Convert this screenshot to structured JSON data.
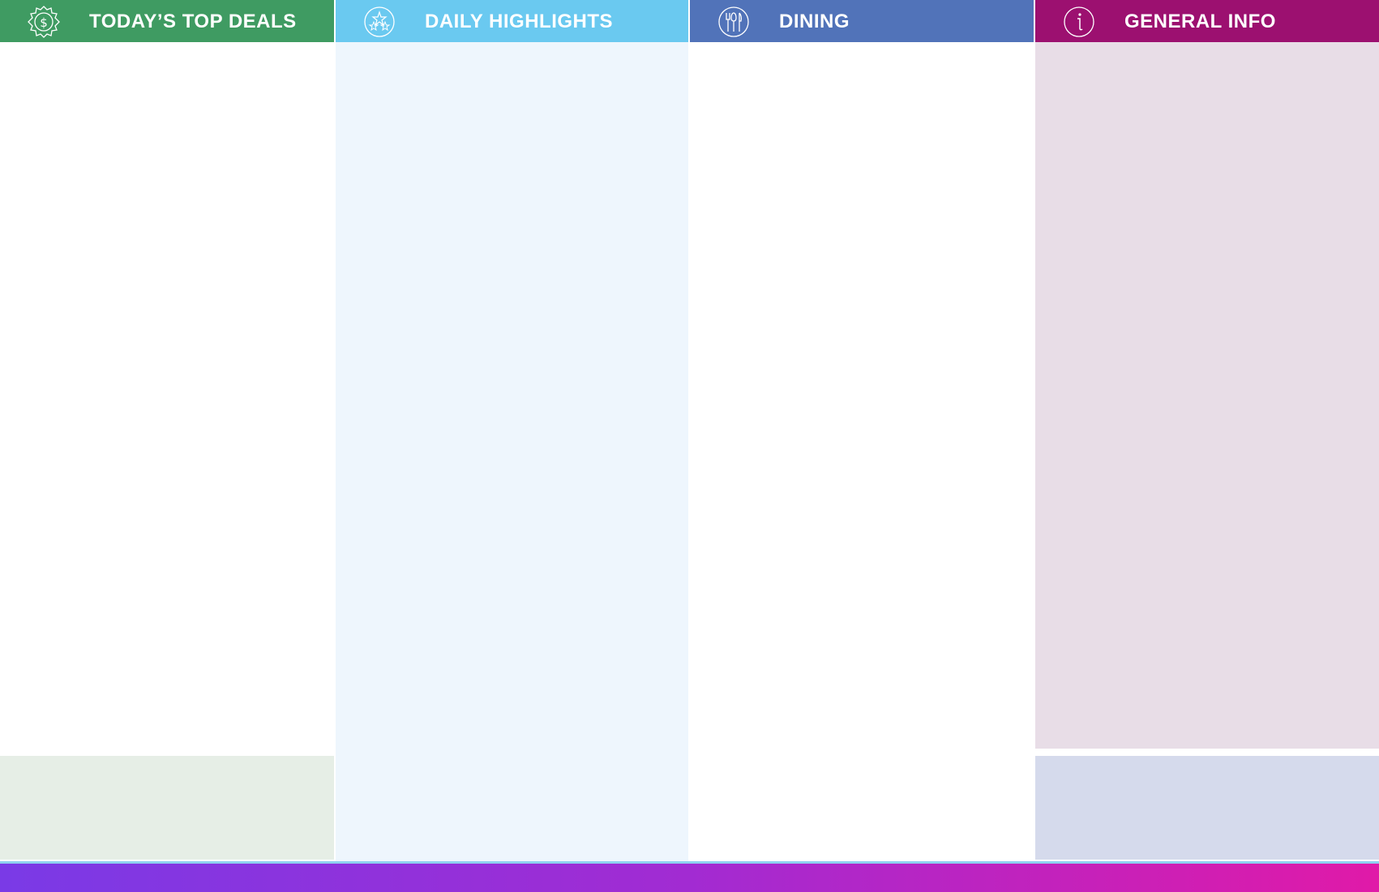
{
  "columns": [
    {
      "title": "TODAY’S TOP DEALS",
      "icon": "dollar-badge-icon",
      "header_color": "#3f9b62",
      "body_color": "#ffffff",
      "footer_color": "#e6eee6"
    },
    {
      "title": "DAILY HIGHLIGHTS",
      "icon": "stars-icon",
      "header_color": "#6ac9f0",
      "body_color": "#eef6fd"
    },
    {
      "title": "DINING",
      "icon": "utensils-icon",
      "header_color": "#5173b9",
      "body_color": "#ffffff"
    },
    {
      "title": "GENERAL INFO",
      "icon": "info-icon",
      "header_color": "#9c1070",
      "body_color": "#e8dde7",
      "footer_color": "#d5daec"
    }
  ],
  "footer_gradient": [
    "#7a3ae6",
    "#e01aa8"
  ]
}
